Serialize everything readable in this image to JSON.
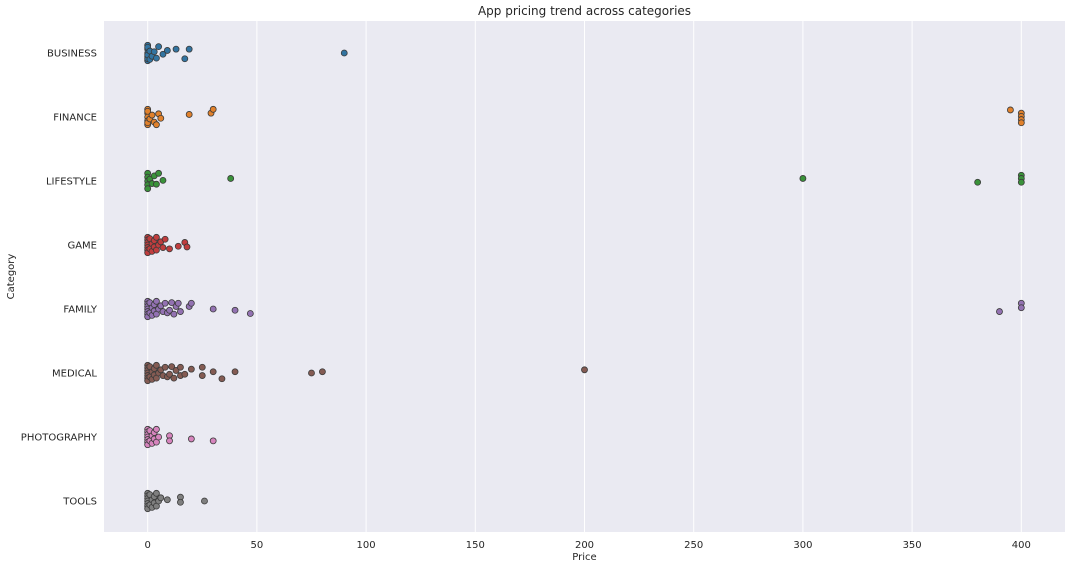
{
  "chart_data": {
    "type": "scatter",
    "style": "strip",
    "title": "App pricing trend across categories",
    "xlabel": "Price",
    "ylabel": "Category",
    "xlim": [
      -20,
      420
    ],
    "xticks": [
      0,
      50,
      100,
      150,
      200,
      250,
      300,
      350,
      400
    ],
    "grid": "vertical",
    "background": "#eaeaf2",
    "categories": [
      "BUSINESS",
      "FINANCE",
      "LIFESTYLE",
      "GAME",
      "FAMILY",
      "MEDICAL",
      "PHOTOGRAPHY",
      "TOOLS"
    ],
    "series": [
      {
        "category": "BUSINESS",
        "color": "#3274a1",
        "points": [
          [
            0,
            -0.12
          ],
          [
            0,
            -0.06
          ],
          [
            0,
            0
          ],
          [
            0,
            0.06
          ],
          [
            0,
            0.12
          ],
          [
            0,
            -0.09
          ],
          [
            0,
            0.09
          ],
          [
            0,
            0.03
          ],
          [
            1,
            -0.03
          ],
          [
            1,
            0.1
          ],
          [
            2,
            0.05
          ],
          [
            3,
            -0.02
          ],
          [
            4,
            0.08
          ],
          [
            5,
            -0.1
          ],
          [
            7,
            0.02
          ],
          [
            9,
            -0.04
          ],
          [
            13,
            -0.06
          ],
          [
            17,
            0.09
          ],
          [
            19,
            -0.06
          ],
          [
            90,
            0
          ]
        ]
      },
      {
        "category": "FINANCE",
        "color": "#e1812c",
        "points": [
          [
            0,
            -0.12
          ],
          [
            0,
            -0.06
          ],
          [
            0,
            0
          ],
          [
            0,
            0.06
          ],
          [
            0,
            0.12
          ],
          [
            0,
            -0.09
          ],
          [
            0,
            0.09
          ],
          [
            1,
            0.03
          ],
          [
            2,
            -0.03
          ],
          [
            3,
            0.08
          ],
          [
            4,
            0.12
          ],
          [
            5,
            -0.05
          ],
          [
            6,
            0.02
          ],
          [
            19,
            -0.04
          ],
          [
            29,
            -0.06
          ],
          [
            30,
            -0.12
          ],
          [
            395,
            -0.11
          ],
          [
            400,
            -0.06
          ],
          [
            400,
            -0.01
          ],
          [
            400,
            0.04
          ],
          [
            400,
            0.09
          ]
        ]
      },
      {
        "category": "LIFESTYLE",
        "color": "#3a923a",
        "points": [
          [
            0,
            -0.12
          ],
          [
            0,
            -0.06
          ],
          [
            0,
            0
          ],
          [
            0,
            0.06
          ],
          [
            0,
            0.12
          ],
          [
            1,
            -0.03
          ],
          [
            2,
            0.04
          ],
          [
            3,
            -0.08
          ],
          [
            4,
            0.05
          ],
          [
            5,
            -0.12
          ],
          [
            7,
            -0.01
          ],
          [
            38,
            -0.04
          ],
          [
            300,
            -0.04
          ],
          [
            380,
            0.02
          ],
          [
            400,
            -0.09
          ],
          [
            400,
            -0.04
          ],
          [
            400,
            0.02
          ]
        ]
      },
      {
        "category": "GAME",
        "color": "#c03d3e",
        "points": [
          [
            0,
            -0.12
          ],
          [
            0,
            -0.08
          ],
          [
            0,
            -0.04
          ],
          [
            0,
            0
          ],
          [
            0,
            0.04
          ],
          [
            0,
            0.08
          ],
          [
            0,
            0.12
          ],
          [
            1,
            -0.1
          ],
          [
            1,
            0.06
          ],
          [
            2,
            -0.02
          ],
          [
            2,
            0.1
          ],
          [
            3,
            -0.07
          ],
          [
            3,
            0.03
          ],
          [
            4,
            -0.12
          ],
          [
            4,
            0.08
          ],
          [
            5,
            0
          ],
          [
            6,
            -0.05
          ],
          [
            7,
            0.04
          ],
          [
            8,
            -0.09
          ],
          [
            10,
            0.06
          ],
          [
            14,
            0.02
          ],
          [
            17,
            -0.04
          ],
          [
            18,
            0.03
          ]
        ]
      },
      {
        "category": "FAMILY",
        "color": "#9372b2",
        "points": [
          [
            0,
            -0.12
          ],
          [
            0,
            -0.08
          ],
          [
            0,
            -0.04
          ],
          [
            0,
            0
          ],
          [
            0,
            0.04
          ],
          [
            0,
            0.08
          ],
          [
            0,
            0.12
          ],
          [
            1,
            -0.1
          ],
          [
            1,
            0.06
          ],
          [
            2,
            -0.02
          ],
          [
            2,
            0.1
          ],
          [
            3,
            -0.07
          ],
          [
            3,
            0.03
          ],
          [
            4,
            -0.12
          ],
          [
            4,
            0.08
          ],
          [
            5,
            0
          ],
          [
            6,
            -0.05
          ],
          [
            7,
            0.04
          ],
          [
            8,
            -0.09
          ],
          [
            9,
            0.06
          ],
          [
            10,
            0.02
          ],
          [
            11,
            -0.1
          ],
          [
            12,
            0.08
          ],
          [
            13,
            -0.04
          ],
          [
            14,
            -0.09
          ],
          [
            15,
            0.04
          ],
          [
            19,
            -0.04
          ],
          [
            20,
            -0.09
          ],
          [
            30,
            0
          ],
          [
            40,
            0.02
          ],
          [
            47,
            0.07
          ],
          [
            390,
            0.04
          ],
          [
            400,
            -0.09
          ],
          [
            400,
            -0.02
          ]
        ]
      },
      {
        "category": "MEDICAL",
        "color": "#845b53",
        "points": [
          [
            0,
            -0.12
          ],
          [
            0,
            -0.08
          ],
          [
            0,
            -0.04
          ],
          [
            0,
            0
          ],
          [
            0,
            0.04
          ],
          [
            0,
            0.08
          ],
          [
            0,
            0.12
          ],
          [
            1,
            -0.1
          ],
          [
            1,
            0.06
          ],
          [
            2,
            -0.02
          ],
          [
            2,
            0.1
          ],
          [
            3,
            -0.07
          ],
          [
            3,
            0.03
          ],
          [
            4,
            -0.12
          ],
          [
            4,
            0.08
          ],
          [
            5,
            0
          ],
          [
            6,
            -0.05
          ],
          [
            7,
            0.04
          ],
          [
            8,
            -0.09
          ],
          [
            9,
            0.06
          ],
          [
            10,
            0.02
          ],
          [
            11,
            -0.1
          ],
          [
            12,
            0.08
          ],
          [
            13,
            -0.04
          ],
          [
            15,
            -0.09
          ],
          [
            15,
            0.04
          ],
          [
            17,
            0.02
          ],
          [
            20,
            -0.06
          ],
          [
            25,
            -0.09
          ],
          [
            25,
            0.04
          ],
          [
            30,
            -0.02
          ],
          [
            34,
            0.09
          ],
          [
            40,
            -0.02
          ],
          [
            75,
            0
          ],
          [
            80,
            -0.02
          ],
          [
            200,
            -0.05
          ]
        ]
      },
      {
        "category": "PHOTOGRAPHY",
        "color": "#d684bd",
        "points": [
          [
            0,
            -0.12
          ],
          [
            0,
            -0.08
          ],
          [
            0,
            -0.04
          ],
          [
            0,
            0
          ],
          [
            0,
            0.04
          ],
          [
            0,
            0.08
          ],
          [
            0,
            0.12
          ],
          [
            1,
            -0.1
          ],
          [
            1,
            0.06
          ],
          [
            2,
            -0.02
          ],
          [
            2,
            0.1
          ],
          [
            3,
            -0.07
          ],
          [
            3,
            0.03
          ],
          [
            4,
            -0.12
          ],
          [
            4,
            0.08
          ],
          [
            5,
            0
          ],
          [
            10,
            -0.02
          ],
          [
            10,
            0.06
          ],
          [
            20,
            0.03
          ],
          [
            30,
            0.06
          ]
        ]
      },
      {
        "category": "TOOLS",
        "color": "#7f7f7f",
        "points": [
          [
            0,
            -0.12
          ],
          [
            0,
            -0.08
          ],
          [
            0,
            -0.04
          ],
          [
            0,
            0
          ],
          [
            0,
            0.04
          ],
          [
            0,
            0.08
          ],
          [
            0,
            0.12
          ],
          [
            1,
            -0.1
          ],
          [
            1,
            0.06
          ],
          [
            2,
            -0.02
          ],
          [
            2,
            0.1
          ],
          [
            3,
            -0.07
          ],
          [
            3,
            0.03
          ],
          [
            4,
            -0.12
          ],
          [
            4,
            0.08
          ],
          [
            5,
            0
          ],
          [
            6,
            -0.05
          ],
          [
            9,
            -0.02
          ],
          [
            15,
            -0.06
          ],
          [
            15,
            0.02
          ],
          [
            26,
            0
          ]
        ]
      }
    ]
  }
}
